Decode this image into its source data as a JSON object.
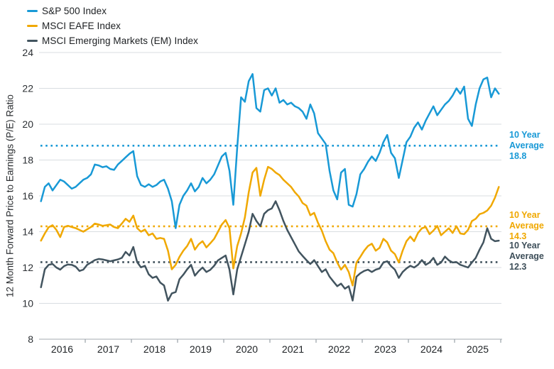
{
  "legend": {
    "items": [
      {
        "label": "S&P 500 Index",
        "color": "#1899d6"
      },
      {
        "label": "MSCI EAFE Index",
        "color": "#f0a800"
      },
      {
        "label": "MSCI Emerging Markets (EM) Index",
        "color": "#42545f"
      }
    ]
  },
  "y_axis": {
    "title": "12 Month Forward Price to Earnings (P/E) Ratio",
    "ticks": [
      8,
      10,
      12,
      14,
      16,
      18,
      20,
      22,
      24
    ],
    "min": 8,
    "max": 24
  },
  "x_axis": {
    "year_labels": [
      "2016",
      "2017",
      "2018",
      "2019",
      "2020",
      "2021",
      "2022",
      "2023",
      "2024",
      "2025"
    ]
  },
  "chart_data": {
    "type": "line",
    "x_unit": "month",
    "x_range": [
      "2016-01",
      "2025-12"
    ],
    "grid": "horizontal",
    "legend_position": "top-left",
    "ylim": [
      8,
      24
    ],
    "series": [
      {
        "name": "S&P 500 Index",
        "color": "#1899d6",
        "values": [
          15.7,
          16.5,
          16.7,
          16.3,
          16.6,
          16.9,
          16.8,
          16.6,
          16.4,
          16.5,
          16.7,
          16.9,
          17.0,
          17.2,
          17.75,
          17.7,
          17.6,
          17.65,
          17.5,
          17.45,
          17.75,
          17.95,
          18.15,
          18.35,
          18.5,
          17.1,
          16.6,
          16.5,
          16.65,
          16.5,
          16.6,
          16.8,
          16.9,
          16.4,
          15.7,
          14.2,
          15.5,
          16.0,
          16.3,
          16.7,
          16.25,
          16.5,
          17.0,
          16.7,
          16.9,
          17.2,
          17.7,
          18.2,
          18.4,
          17.4,
          15.5,
          18.7,
          21.5,
          21.25,
          22.4,
          22.8,
          20.9,
          20.7,
          21.9,
          22.0,
          21.6,
          22.0,
          21.2,
          21.35,
          21.1,
          21.2,
          21.0,
          20.9,
          20.7,
          20.3,
          21.1,
          20.6,
          19.5,
          19.2,
          18.9,
          17.4,
          16.3,
          15.8,
          17.3,
          17.5,
          15.5,
          15.4,
          16.1,
          17.2,
          17.5,
          17.9,
          18.2,
          17.95,
          18.4,
          19.0,
          19.4,
          18.4,
          18.1,
          17.0,
          18.0,
          19.0,
          19.3,
          19.8,
          20.1,
          19.7,
          20.2,
          20.6,
          21.0,
          20.5,
          20.8,
          21.1,
          21.3,
          21.6,
          22.0,
          21.7,
          22.1,
          20.3,
          19.9,
          21.1,
          22.0,
          22.5,
          22.6,
          21.5,
          22.0,
          21.7
        ]
      },
      {
        "name": "MSCI EAFE Index",
        "color": "#f0a800",
        "values": [
          13.5,
          13.9,
          14.25,
          14.36,
          14.1,
          13.7,
          14.26,
          14.33,
          14.26,
          14.2,
          14.1,
          14.0,
          14.13,
          14.26,
          14.45,
          14.4,
          14.33,
          14.36,
          14.4,
          14.26,
          14.2,
          14.45,
          14.72,
          14.55,
          14.9,
          14.2,
          14.0,
          14.12,
          13.8,
          13.9,
          13.6,
          13.65,
          13.6,
          12.94,
          11.9,
          12.15,
          12.6,
          12.94,
          13.2,
          13.6,
          13.0,
          13.3,
          13.47,
          13.12,
          13.35,
          13.6,
          14.0,
          14.4,
          14.65,
          14.2,
          11.95,
          13.2,
          13.9,
          14.8,
          16.2,
          17.3,
          17.56,
          16.0,
          16.9,
          17.62,
          17.5,
          17.3,
          17.16,
          16.9,
          16.7,
          16.5,
          16.2,
          15.97,
          15.6,
          15.45,
          14.92,
          15.05,
          14.5,
          14.06,
          13.47,
          13.0,
          12.8,
          12.28,
          11.88,
          12.15,
          11.75,
          11.0,
          12.28,
          12.6,
          12.94,
          13.2,
          13.33,
          12.94,
          13.1,
          13.6,
          13.4,
          12.94,
          12.75,
          12.28,
          12.94,
          13.47,
          13.73,
          13.47,
          13.93,
          14.19,
          14.26,
          13.86,
          14.06,
          14.32,
          13.8,
          14.0,
          14.19,
          13.93,
          14.3,
          13.9,
          13.86,
          14.1,
          14.59,
          14.72,
          14.98,
          15.05,
          15.18,
          15.45,
          15.9,
          16.5
        ]
      },
      {
        "name": "MSCI Emerging Markets (EM) Index",
        "color": "#42545f",
        "values": [
          10.9,
          11.9,
          12.15,
          12.2,
          12.0,
          11.88,
          12.08,
          12.17,
          12.15,
          12.05,
          11.81,
          11.88,
          12.15,
          12.28,
          12.41,
          12.48,
          12.45,
          12.4,
          12.35,
          12.4,
          12.45,
          12.54,
          12.87,
          12.67,
          13.15,
          12.3,
          12.01,
          12.1,
          11.62,
          11.42,
          11.5,
          11.16,
          11.0,
          10.15,
          10.56,
          10.63,
          11.35,
          11.6,
          11.9,
          12.15,
          11.55,
          11.8,
          12.0,
          11.75,
          11.87,
          12.1,
          12.4,
          12.54,
          12.67,
          11.88,
          10.5,
          11.9,
          12.6,
          13.3,
          14.0,
          15.0,
          14.6,
          14.3,
          15.0,
          15.2,
          15.3,
          15.7,
          15.2,
          14.6,
          14.1,
          13.7,
          13.3,
          12.9,
          12.65,
          12.41,
          12.2,
          12.41,
          12.08,
          11.75,
          11.9,
          11.49,
          11.22,
          10.96,
          11.1,
          10.82,
          10.96,
          10.16,
          11.49,
          11.68,
          11.81,
          11.88,
          11.75,
          11.88,
          11.95,
          12.28,
          12.35,
          12.08,
          11.88,
          11.42,
          11.75,
          11.95,
          12.1,
          12.0,
          12.15,
          12.41,
          12.15,
          12.28,
          12.54,
          12.15,
          12.28,
          12.61,
          12.4,
          12.28,
          12.3,
          12.15,
          12.08,
          12.0,
          12.28,
          12.54,
          13.0,
          13.4,
          14.19,
          13.6,
          13.47,
          13.5
        ]
      }
    ],
    "averages": [
      {
        "lines": [
          "10 Year",
          "Average",
          "18.8"
        ],
        "value": 18.8,
        "color": "#1899d6",
        "dy": 0
      },
      {
        "lines": [
          "10 Year",
          "Average",
          "14.3"
        ],
        "value": 14.3,
        "color": "#f0a800",
        "dy": 0
      },
      {
        "lines": [
          "10 Year",
          "Average",
          "12.3"
        ],
        "value": 12.3,
        "color": "#3d4e59",
        "dy": -8
      }
    ]
  }
}
